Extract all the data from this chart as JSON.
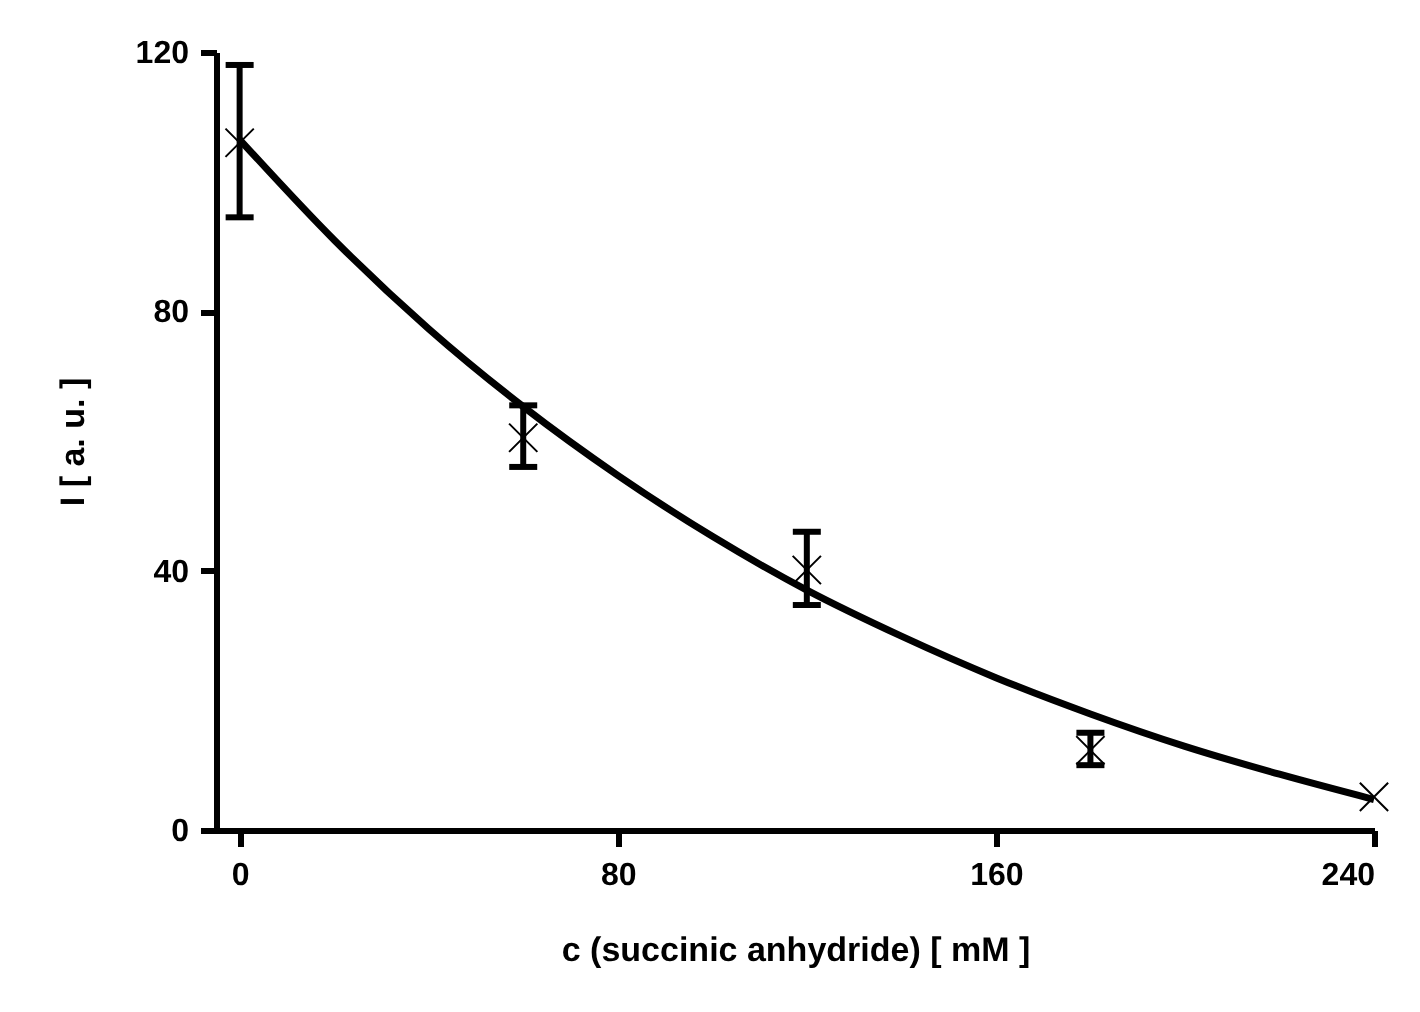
{
  "chart_data": {
    "type": "scatter",
    "xlabel": "c (succinic anhydride) [ mM ]",
    "ylabel": "I [ a. u. ]",
    "xlim": [
      -5,
      240
    ],
    "xticks": [
      0,
      80,
      160,
      240
    ],
    "ylim": [
      0,
      120
    ],
    "yticks": [
      0,
      40,
      80,
      120
    ],
    "grid": false,
    "series": [
      {
        "color": "#000000",
        "marker": "cross",
        "x": [
          0,
          60,
          120,
          180,
          240
        ],
        "values": [
          106,
          60.5,
          40.1,
          12.3,
          5.1
        ],
        "errors": [
          [
            94.5,
            118
          ],
          [
            56,
            65.5
          ],
          [
            34.7,
            46
          ],
          [
            10,
            15
          ],
          null
        ]
      },
      {
        "type": "line",
        "color": "#000000",
        "marker": "none",
        "line_style": "solid",
        "x": [
          0,
          20,
          40,
          60,
          80,
          100,
          120,
          140,
          160,
          180,
          200,
          220,
          240
        ],
        "values": [
          106.5,
          91.0,
          77.3,
          65.3,
          54.7,
          45.3,
          37.0,
          29.9,
          23.5,
          17.9,
          12.9,
          8.6,
          4.7
        ]
      }
    ]
  }
}
